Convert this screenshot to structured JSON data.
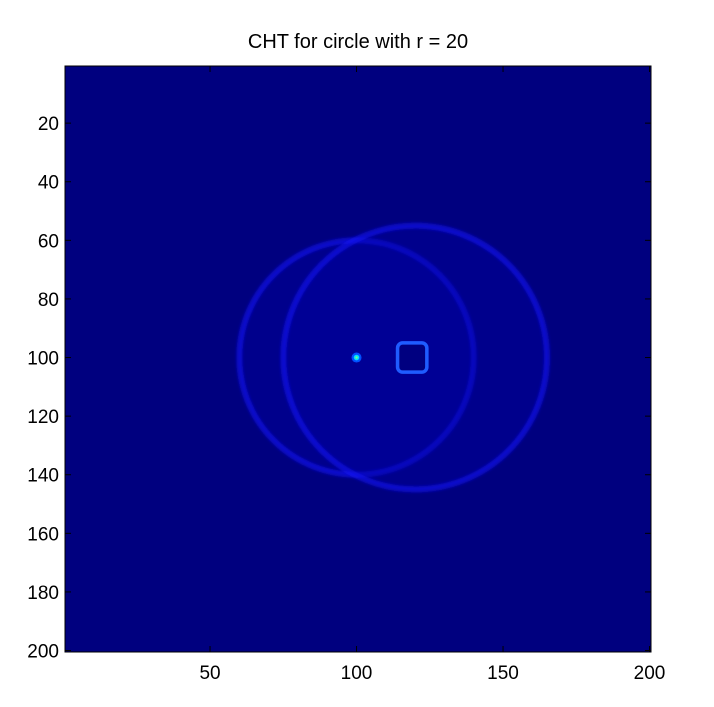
{
  "chart_data": {
    "type": "heatmap",
    "title": "CHT for circle with r = 20",
    "xlabel": "",
    "ylabel": "",
    "xlim": [
      0.5,
      200.5
    ],
    "ylim": [
      0.5,
      200.5
    ],
    "y_reversed": true,
    "x_ticks": [
      50,
      100,
      150,
      200
    ],
    "y_ticks": [
      20,
      40,
      60,
      80,
      100,
      120,
      140,
      160,
      180,
      200
    ],
    "colormap": "jet",
    "background_color": "#00007f",
    "grid": false,
    "legend": "none",
    "features": [
      {
        "type": "ring",
        "cx": 100,
        "cy": 100,
        "r": 40,
        "intensity": "low"
      },
      {
        "type": "ring",
        "cx": 120,
        "cy": 100,
        "r": 45,
        "intensity": "low"
      },
      {
        "type": "hollow-square",
        "cx": 119,
        "cy": 100,
        "half_size": 5,
        "intensity": "medium"
      },
      {
        "type": "peak",
        "cx": 100,
        "cy": 100,
        "intensity": "high"
      }
    ]
  }
}
